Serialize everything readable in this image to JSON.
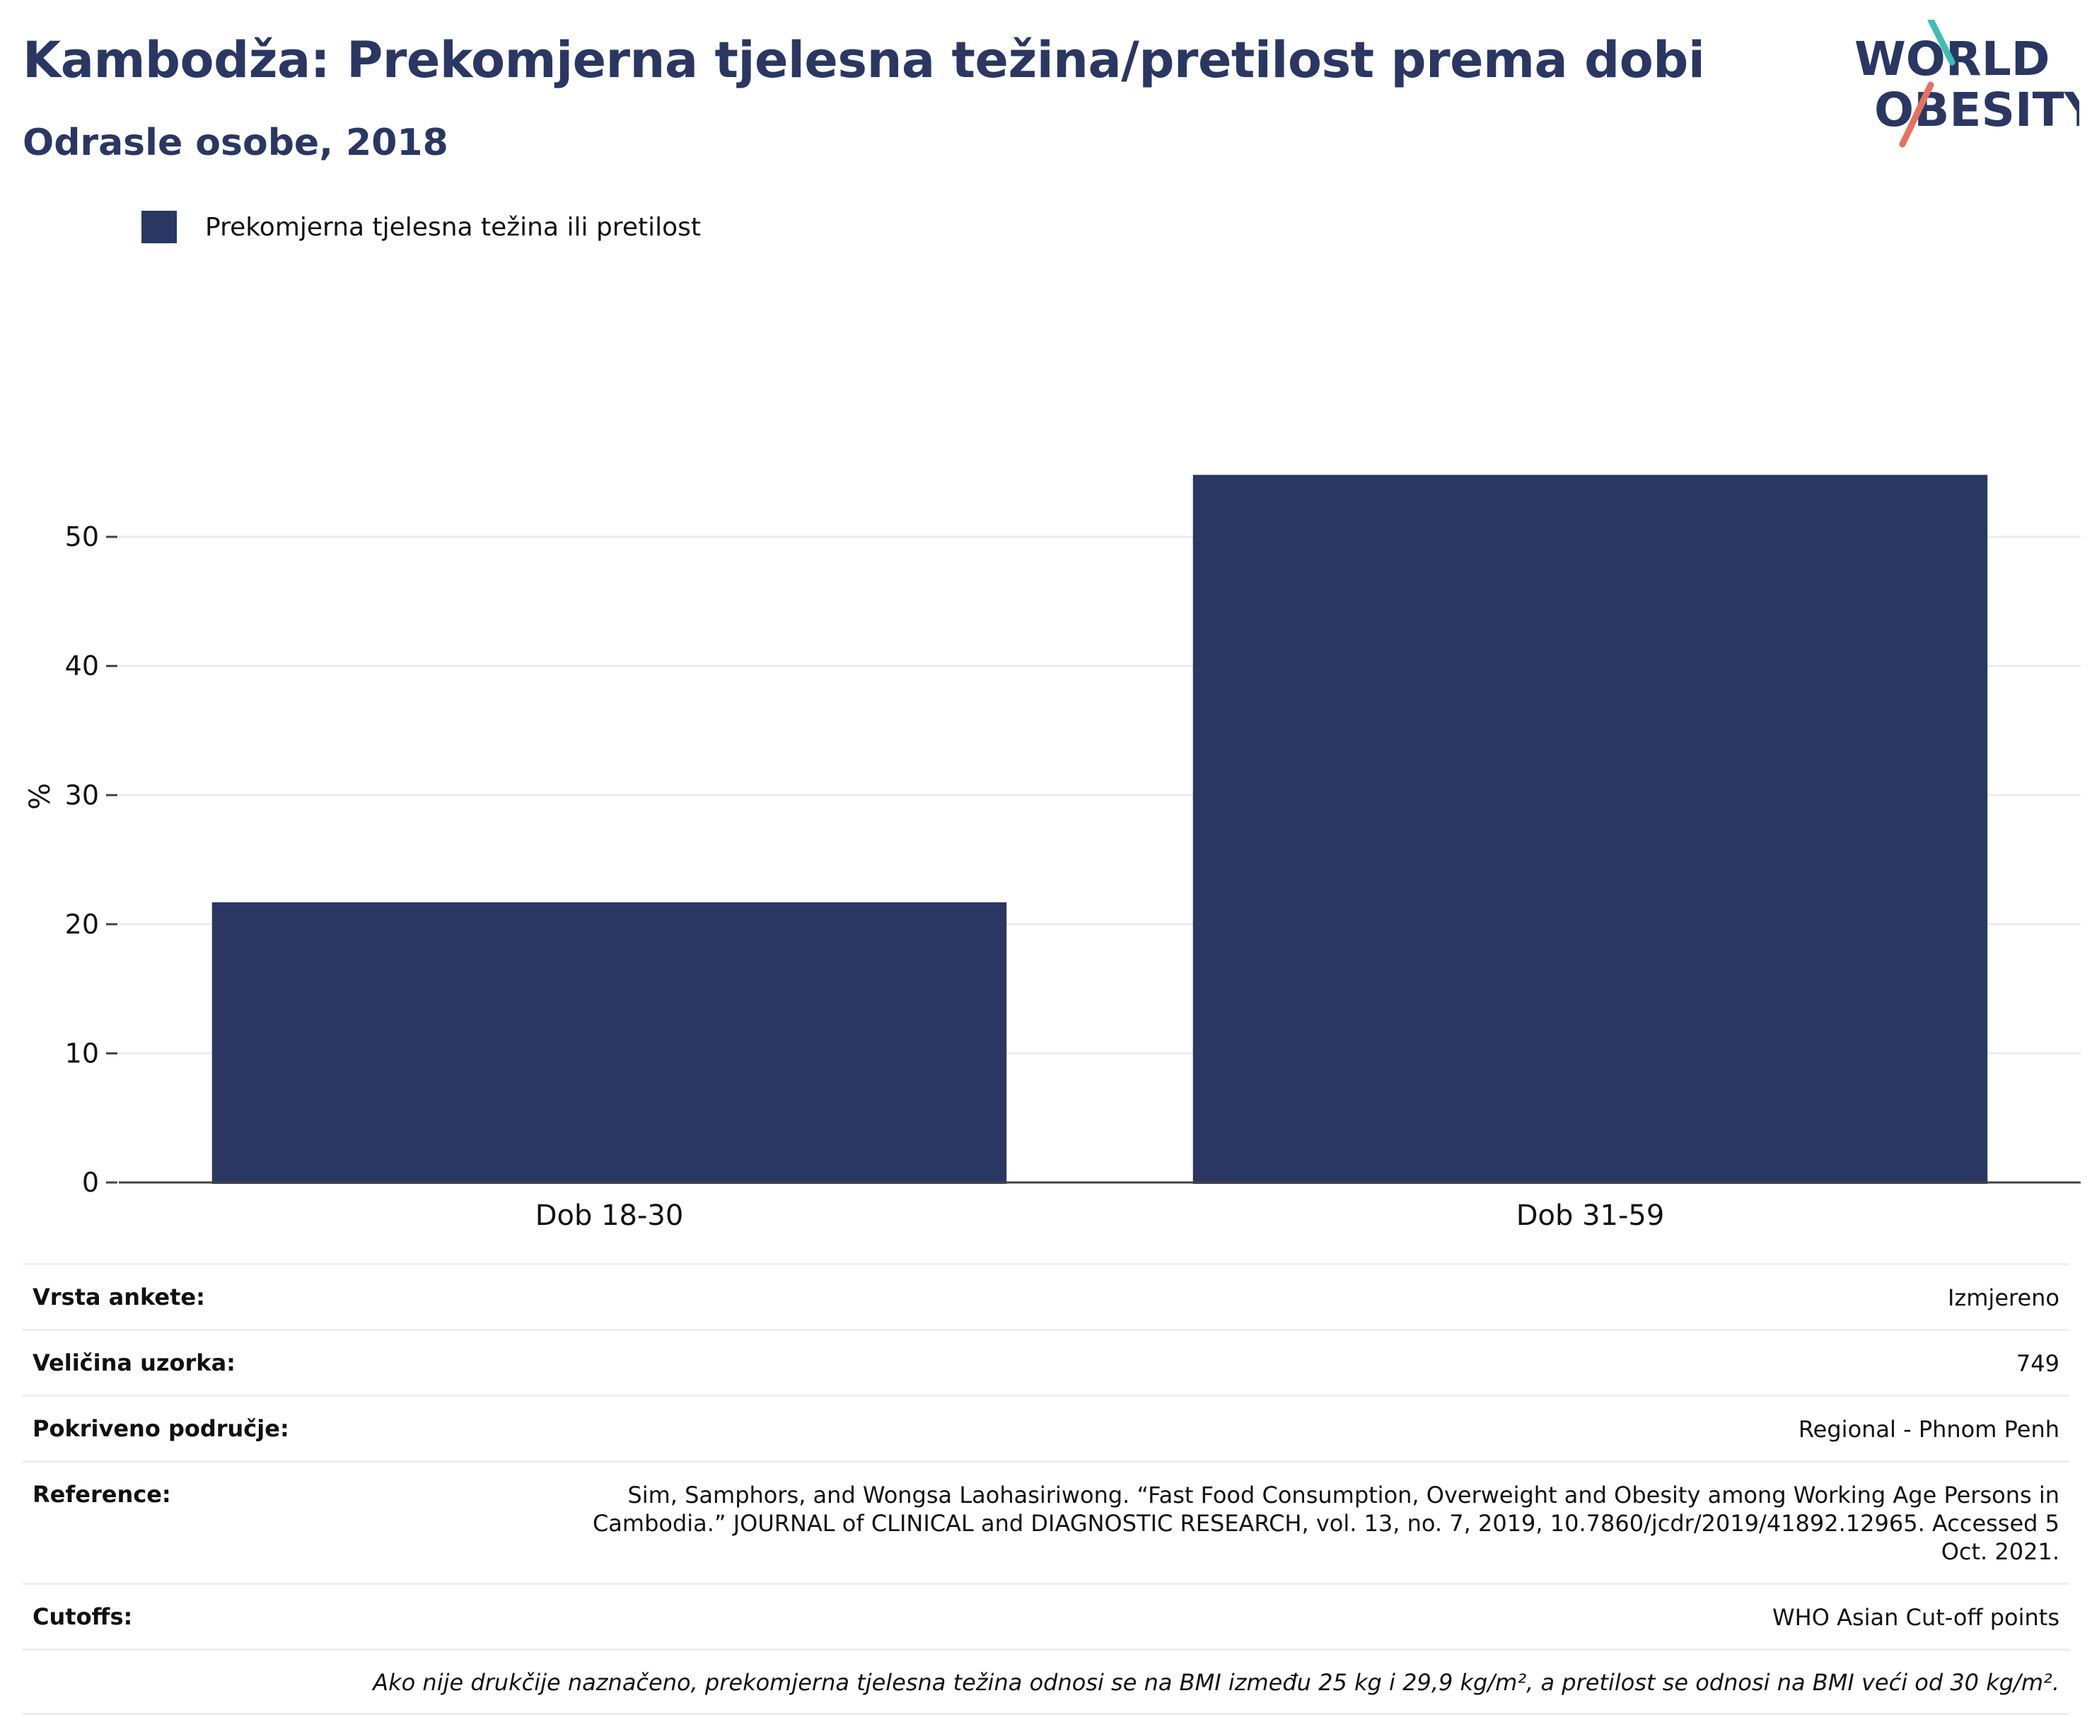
{
  "header": {
    "title": "Kambodža: Prekomjerna tjelesna težina/pretilost prema dobi",
    "subtitle": "Odrasle osobe, 2018"
  },
  "logo": {
    "line1": "WORLD",
    "line2": "OBESITY"
  },
  "colors": {
    "bar": "#2a3763",
    "brand_navy": "#2a3763",
    "logo_teal": "#3dbdb6",
    "logo_coral": "#e8705f",
    "grid": "#e9ebef"
  },
  "chart_data": {
    "type": "bar",
    "categories": [
      "Dob 18-30",
      "Dob 31-59"
    ],
    "series": [
      {
        "name": "Prekomjerna tjelesna težina ili pretilost",
        "values": [
          21.7,
          54.8
        ]
      }
    ],
    "xlabel": "",
    "ylabel": "%",
    "ylim": [
      0,
      62
    ],
    "yticks": [
      0,
      10,
      20,
      30,
      40,
      50
    ],
    "grid": true,
    "legend_position": "top-left"
  },
  "info": {
    "rows": [
      {
        "label": "Vrsta ankete:",
        "value": "Izmjereno"
      },
      {
        "label": "Veličina uzorka:",
        "value": "749"
      },
      {
        "label": "Pokriveno područje:",
        "value": "Regional - Phnom Penh"
      },
      {
        "label": "Reference:",
        "value": "Sim, Samphors, and Wongsa Laohasiriwong. “Fast Food Consumption, Overweight and Obesity among Working Age Persons in Cambodia.” JOURNAL of CLINICAL and DIAGNOSTIC RESEARCH, vol. 13, no. 7, 2019, 10.7860/jcdr/2019/41892.12965. Accessed 5 Oct. 2021."
      },
      {
        "label": "Cutoffs:",
        "value": "WHO Asian Cut-off points"
      }
    ],
    "note": "Ako nije drukčije naznačeno, prekomjerna tjelesna težina odnosi se na BMI između 25 kg i 29,9 kg/m², a pretilost se odnosi na BMI veći od 30 kg/m²."
  }
}
